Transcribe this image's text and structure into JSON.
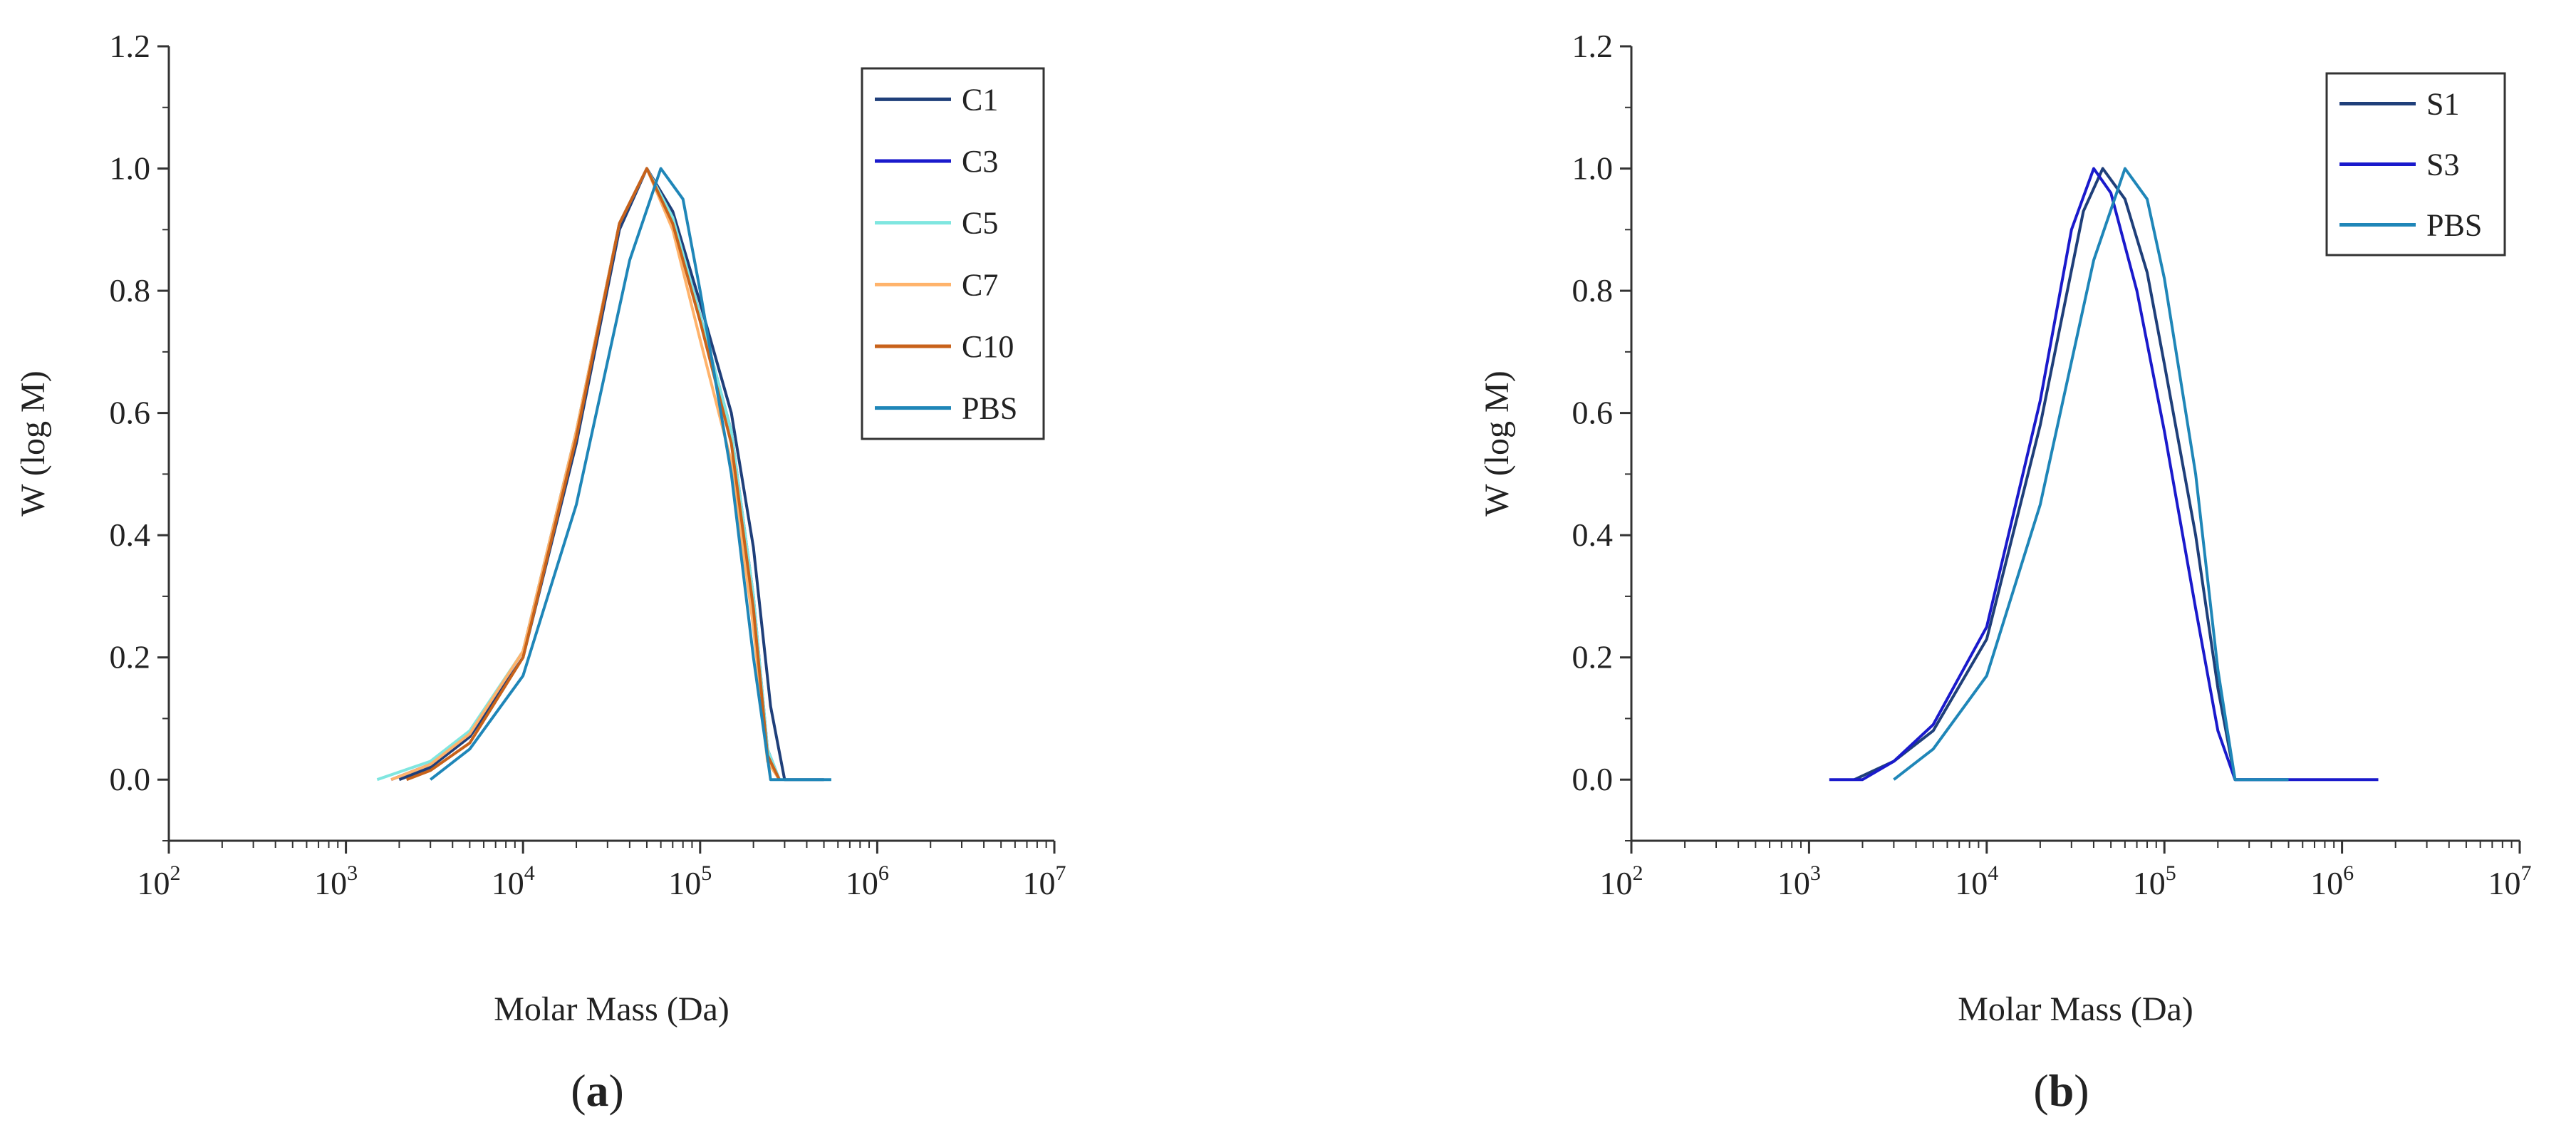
{
  "chart_data": [
    {
      "type": "line",
      "panel_label": "a",
      "xlabel": "Molar Mass (Da)",
      "ylabel": "W (log M)",
      "xscale": "log",
      "xlim": [
        100,
        10000000
      ],
      "ylim": [
        -0.1,
        1.2
      ],
      "xticks": [
        {
          "base": "10",
          "exp": "2",
          "value": 100
        },
        {
          "base": "10",
          "exp": "3",
          "value": 1000
        },
        {
          "base": "10",
          "exp": "4",
          "value": 10000
        },
        {
          "base": "10",
          "exp": "5",
          "value": 100000
        },
        {
          "base": "10",
          "exp": "6",
          "value": 1000000
        },
        {
          "base": "10",
          "exp": "7",
          "value": 10000000
        }
      ],
      "yticks": [
        {
          "label": "0.0",
          "value": 0.0
        },
        {
          "label": "0.2",
          "value": 0.2
        },
        {
          "label": "0.4",
          "value": 0.4
        },
        {
          "label": "0.6",
          "value": 0.6
        },
        {
          "label": "0.8",
          "value": 0.8
        },
        {
          "label": "1.0",
          "value": 1.0
        },
        {
          "label": "1.2",
          "value": 1.2
        }
      ],
      "legend_position": "top-right",
      "series": [
        {
          "name": "C1",
          "color": "#1f3f7a",
          "x": [
            2000,
            3000,
            5000,
            10000,
            20000,
            35000,
            50000,
            70000,
            100000,
            150000,
            200000,
            250000,
            300000,
            330000,
            500000
          ],
          "y": [
            0.0,
            0.02,
            0.07,
            0.2,
            0.55,
            0.9,
            1.0,
            0.93,
            0.78,
            0.6,
            0.38,
            0.12,
            0.0,
            0.0,
            0.0
          ]
        },
        {
          "name": "C3",
          "color": "#1a1acc",
          "x": [
            1800,
            3000,
            5000,
            10000,
            20000,
            35000,
            50000,
            70000,
            100000,
            150000,
            200000,
            240000,
            280000
          ],
          "y": [
            0.0,
            0.025,
            0.075,
            0.21,
            0.57,
            0.91,
            1.0,
            0.92,
            0.76,
            0.57,
            0.3,
            0.05,
            0.0
          ]
        },
        {
          "name": "C5",
          "color": "#7fe6e0",
          "x": [
            1500,
            3000,
            5000,
            10000,
            20000,
            35000,
            50000,
            70000,
            100000,
            150000,
            200000,
            240000,
            280000
          ],
          "y": [
            0.0,
            0.03,
            0.08,
            0.21,
            0.57,
            0.91,
            1.0,
            0.92,
            0.76,
            0.57,
            0.3,
            0.05,
            0.0
          ]
        },
        {
          "name": "C7",
          "color": "#ffb36b",
          "x": [
            1800,
            3000,
            5000,
            10000,
            20000,
            35000,
            50000,
            70000,
            100000,
            150000,
            200000,
            240000,
            280000
          ],
          "y": [
            0.0,
            0.025,
            0.075,
            0.21,
            0.57,
            0.91,
            1.0,
            0.9,
            0.72,
            0.52,
            0.25,
            0.03,
            0.0
          ]
        },
        {
          "name": "C10",
          "color": "#c8621a",
          "x": [
            2200,
            3000,
            5000,
            10000,
            20000,
            35000,
            50000,
            70000,
            100000,
            150000,
            200000,
            240000,
            280000
          ],
          "y": [
            0.0,
            0.015,
            0.06,
            0.2,
            0.56,
            0.91,
            1.0,
            0.91,
            0.75,
            0.55,
            0.28,
            0.04,
            0.0
          ]
        },
        {
          "name": "PBS",
          "color": "#1f86b8",
          "x": [
            3000,
            5000,
            10000,
            20000,
            40000,
            60000,
            80000,
            100000,
            150000,
            200000,
            250000,
            350000,
            550000
          ],
          "y": [
            0.0,
            0.05,
            0.17,
            0.45,
            0.85,
            1.0,
            0.95,
            0.8,
            0.5,
            0.2,
            0.0,
            0.0,
            0.0
          ]
        }
      ]
    },
    {
      "type": "line",
      "panel_label": "b",
      "xlabel": "Molar Mass (Da)",
      "ylabel": "W (log M)",
      "xscale": "log",
      "xlim": [
        100,
        10000000
      ],
      "ylim": [
        -0.1,
        1.2
      ],
      "xticks": [
        {
          "base": "10",
          "exp": "2",
          "value": 100
        },
        {
          "base": "10",
          "exp": "3",
          "value": 1000
        },
        {
          "base": "10",
          "exp": "4",
          "value": 10000
        },
        {
          "base": "10",
          "exp": "5",
          "value": 100000
        },
        {
          "base": "10",
          "exp": "6",
          "value": 1000000
        },
        {
          "base": "10",
          "exp": "7",
          "value": 10000000
        }
      ],
      "yticks": [
        {
          "label": "0.0",
          "value": 0.0
        },
        {
          "label": "0.2",
          "value": 0.2
        },
        {
          "label": "0.4",
          "value": 0.4
        },
        {
          "label": "0.6",
          "value": 0.6
        },
        {
          "label": "0.8",
          "value": 0.8
        },
        {
          "label": "1.0",
          "value": 1.0
        },
        {
          "label": "1.2",
          "value": 1.2
        }
      ],
      "legend_position": "top-right",
      "series": [
        {
          "name": "S1",
          "color": "#1f3f7a",
          "x": [
            1800,
            3000,
            5000,
            10000,
            20000,
            35000,
            45000,
            60000,
            80000,
            100000,
            150000,
            200000,
            250000,
            500000
          ],
          "y": [
            0.0,
            0.03,
            0.08,
            0.23,
            0.58,
            0.93,
            1.0,
            0.95,
            0.83,
            0.68,
            0.4,
            0.15,
            0.0,
            0.0
          ]
        },
        {
          "name": "S3",
          "color": "#1a1acc",
          "x": [
            1300,
            2000,
            3000,
            5000,
            10000,
            20000,
            30000,
            40000,
            50000,
            70000,
            100000,
            150000,
            200000,
            250000,
            500000,
            1600000
          ],
          "y": [
            0.0,
            0.0,
            0.03,
            0.09,
            0.25,
            0.62,
            0.9,
            1.0,
            0.96,
            0.8,
            0.57,
            0.28,
            0.08,
            0.0,
            0.0,
            0.0
          ]
        },
        {
          "name": "PBS",
          "color": "#1f86b8",
          "x": [
            3000,
            5000,
            10000,
            20000,
            40000,
            60000,
            80000,
            100000,
            150000,
            200000,
            250000,
            500000
          ],
          "y": [
            0.0,
            0.05,
            0.17,
            0.45,
            0.85,
            1.0,
            0.95,
            0.82,
            0.5,
            0.18,
            0.0,
            0.0
          ]
        }
      ]
    }
  ]
}
